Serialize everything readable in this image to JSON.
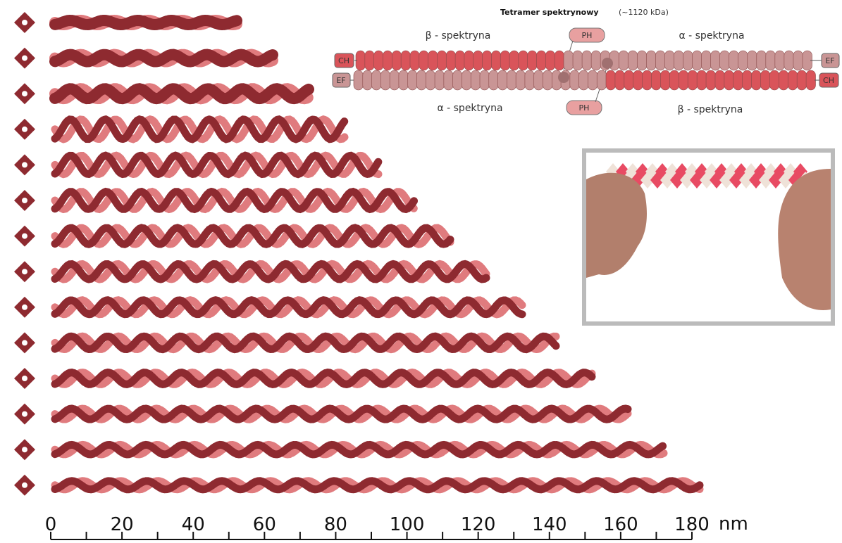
{
  "diagram": {
    "title": "Tetramer spektrynowy",
    "mass": "(~1120 kDa)",
    "top_left_label": "β - spektryna",
    "top_right_label": "α - spektryna",
    "bottom_left_label": "α - spektryna",
    "bottom_right_label": "β - spektryna",
    "top_ph": "PH",
    "bottom_ph": "PH",
    "top_left_domain": "CH",
    "top_right_domain": "EF",
    "bottom_left_domain": "EF",
    "bottom_right_domain": "CH"
  },
  "scale": {
    "ticks": [
      0,
      20,
      40,
      60,
      80,
      100,
      120,
      140,
      160,
      180
    ],
    "lim": [
      0,
      180
    ],
    "unit": "nm"
  }
}
